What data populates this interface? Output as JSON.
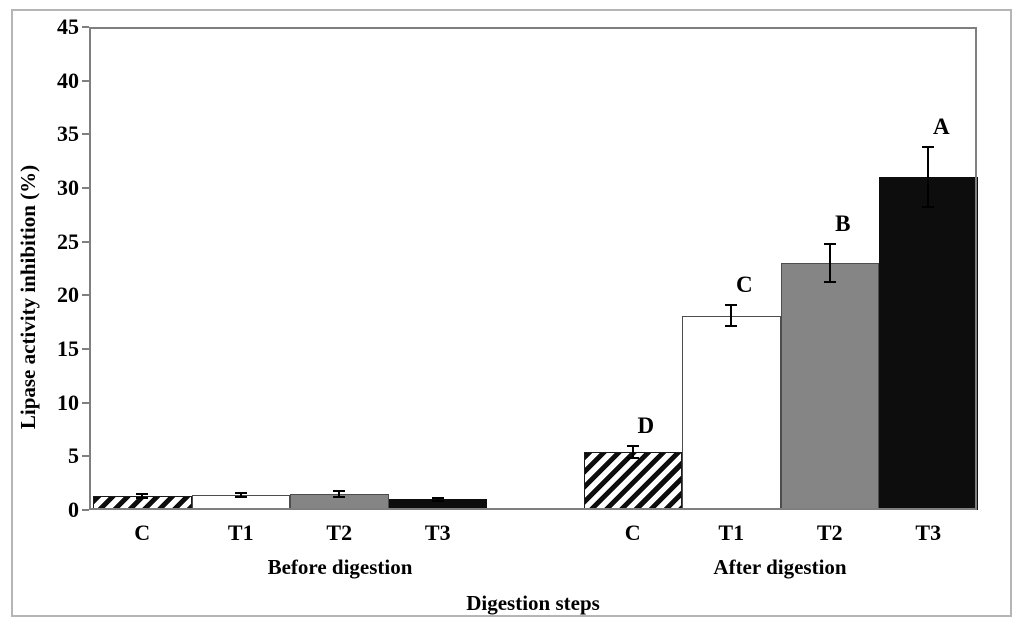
{
  "chart_data": {
    "type": "bar",
    "title": "",
    "ylabel": "Lipase activity inhibition (%)",
    "xlabel": "Digestion steps",
    "ylim": [
      0,
      45
    ],
    "ytick_interval": 5,
    "yticks": [
      0,
      5,
      10,
      15,
      20,
      25,
      30,
      35,
      40,
      45
    ],
    "grid": false,
    "legend": "none",
    "error_bars": true,
    "groups": [
      {
        "label": "Before digestion",
        "bars": [
          {
            "category": "C",
            "value": 1.3,
            "error": 0.2,
            "fill": "hatched",
            "sig_letter": ""
          },
          {
            "category": "T1",
            "value": 1.4,
            "error": 0.15,
            "fill": "white",
            "sig_letter": ""
          },
          {
            "category": "T2",
            "value": 1.5,
            "error": 0.25,
            "fill": "gray",
            "sig_letter": ""
          },
          {
            "category": "T3",
            "value": 1.0,
            "error": 0.15,
            "fill": "black",
            "sig_letter": ""
          }
        ]
      },
      {
        "label": "After digestion",
        "bars": [
          {
            "category": "C",
            "value": 5.4,
            "error": 0.6,
            "fill": "hatched",
            "sig_letter": "D"
          },
          {
            "category": "T1",
            "value": 18.1,
            "error": 1.0,
            "fill": "white",
            "sig_letter": "C"
          },
          {
            "category": "T2",
            "value": 23.0,
            "error": 1.8,
            "fill": "gray",
            "sig_letter": "B"
          },
          {
            "category": "T3",
            "value": 31.0,
            "error": 2.8,
            "fill": "black",
            "sig_letter": "A"
          }
        ]
      }
    ],
    "colors": {
      "gray_fill": "#858585",
      "black_fill": "#0d0d0d",
      "hatch_stripe": "#0d0d0d",
      "bar_outline": "#4d4d4d",
      "axis": "#7f7f7f",
      "text": "#000000",
      "figure_border": "#b5b5b5"
    }
  }
}
